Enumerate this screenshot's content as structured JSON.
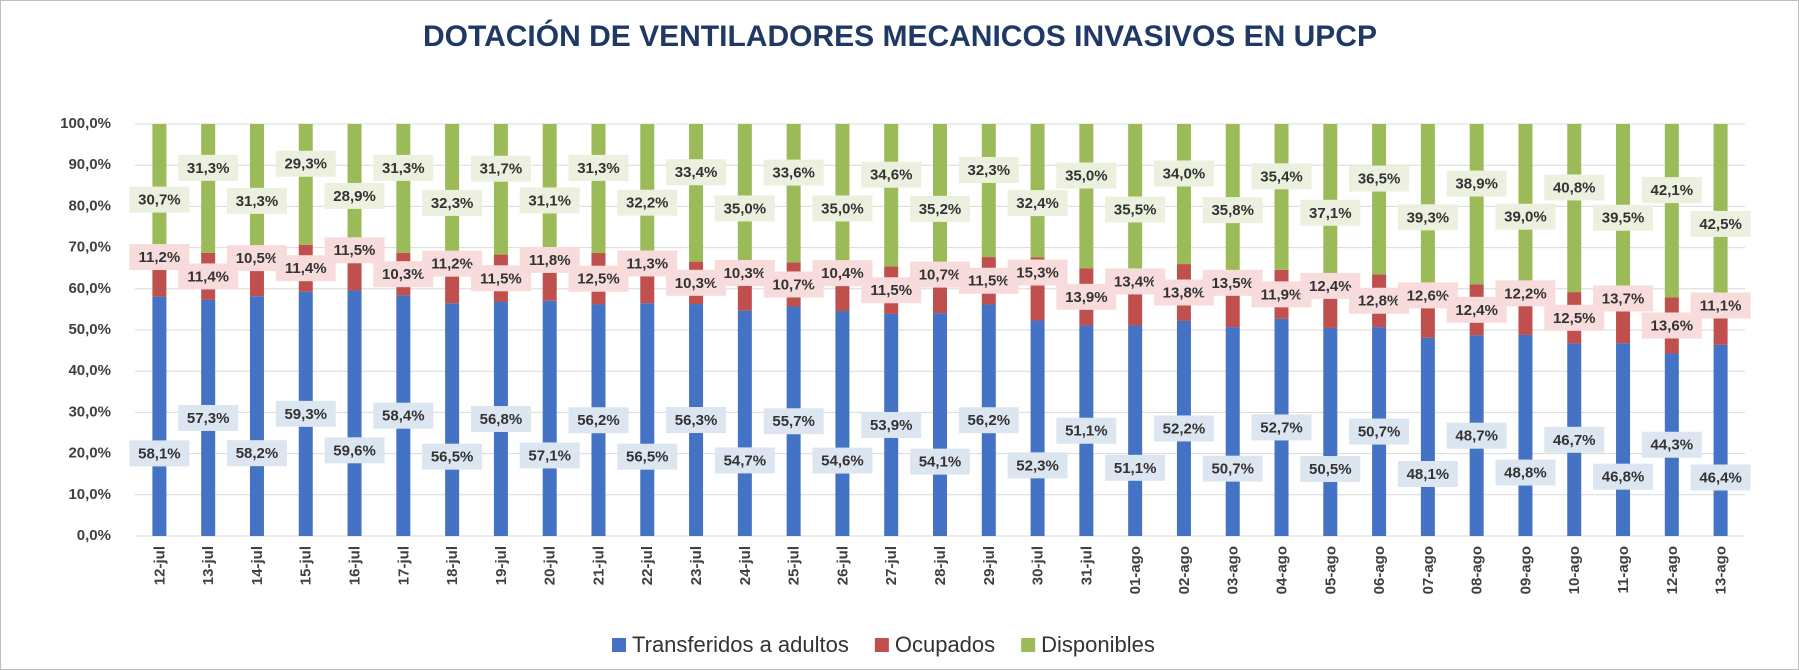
{
  "chart_data": {
    "type": "stacked_bar",
    "title": "DOTACIÓN DE VENTILADORES MECANICOS INVASIVOS EN UPCP",
    "categories": [
      "12-jul",
      "13-jul",
      "14-jul",
      "15-jul",
      "16-jul",
      "17-jul",
      "18-jul",
      "19-jul",
      "20-jul",
      "21-jul",
      "22-jul",
      "23-jul",
      "24-jul",
      "25-jul",
      "26-jul",
      "27-jul",
      "28-jul",
      "29-jul",
      "30-jul",
      "31-jul",
      "01-ago",
      "02-ago",
      "03-ago",
      "04-ago",
      "05-ago",
      "06-ago",
      "07-ago",
      "08-ago",
      "09-ago",
      "10-ago",
      "11-ago",
      "12-ago",
      "13-ago"
    ],
    "series": [
      {
        "name": "Transferidos a adultos",
        "color": "#4472c4",
        "values": [
          58.1,
          57.3,
          58.2,
          59.3,
          59.6,
          58.4,
          56.5,
          56.8,
          57.1,
          56.2,
          56.5,
          56.3,
          54.7,
          55.7,
          54.6,
          53.9,
          54.1,
          56.2,
          52.3,
          51.1,
          51.1,
          52.2,
          50.7,
          52.7,
          50.5,
          50.7,
          48.1,
          48.7,
          48.8,
          46.7,
          46.8,
          44.3,
          46.4
        ],
        "value_labels": [
          "58,1%",
          "57,3%",
          "58,2%",
          "59,3%",
          "59,6%",
          "58,4%",
          "56,5%",
          "56,8%",
          "57,1%",
          "56,2%",
          "56,5%",
          "56,3%",
          "54,7%",
          "55,7%",
          "54,6%",
          "53,9%",
          "54,1%",
          "56,2%",
          "52,3%",
          "51,1%",
          "51,1%",
          "52,2%",
          "50,7%",
          "52,7%",
          "50,5%",
          "50,7%",
          "48,1%",
          "48,7%",
          "48,8%",
          "46,7%",
          "46,8%",
          "44,3%",
          "46,4%"
        ]
      },
      {
        "name": "Ocupados",
        "color": "#c0504d",
        "values": [
          11.2,
          11.4,
          10.5,
          11.4,
          11.5,
          10.3,
          11.2,
          11.5,
          11.8,
          12.5,
          11.3,
          10.3,
          10.3,
          10.7,
          10.4,
          11.5,
          10.7,
          11.5,
          15.3,
          13.9,
          13.4,
          13.8,
          13.5,
          11.9,
          12.4,
          12.8,
          12.6,
          12.4,
          12.2,
          12.5,
          13.7,
          13.6,
          11.1
        ],
        "value_labels": [
          "11,2%",
          "11,4%",
          "10,5%",
          "11,4%",
          "11,5%",
          "10,3%",
          "11,2%",
          "11,5%",
          "11,8%",
          "12,5%",
          "11,3%",
          "10,3%",
          "10,3%",
          "10,7%",
          "10,4%",
          "11,5%",
          "10,7%",
          "11,5%",
          "15,3%",
          "13,9%",
          "13,4%",
          "13,8%",
          "13,5%",
          "11,9%",
          "12,4%",
          "12,8%",
          "12,6%",
          "12,4%",
          "12,2%",
          "12,5%",
          "13,7%",
          "13,6%",
          "11,1%"
        ]
      },
      {
        "name": "Disponibles",
        "color": "#9bbb59",
        "values": [
          30.7,
          31.3,
          31.3,
          29.3,
          28.9,
          31.3,
          32.3,
          31.7,
          31.1,
          31.3,
          32.2,
          33.4,
          35.0,
          33.6,
          35.0,
          34.6,
          35.2,
          32.3,
          32.4,
          35.0,
          35.5,
          34.0,
          35.8,
          35.4,
          37.1,
          36.5,
          39.3,
          38.9,
          39.0,
          40.8,
          39.5,
          42.1,
          42.5
        ],
        "value_labels": [
          "30,7%",
          "31,3%",
          "31,3%",
          "29,3%",
          "28,9%",
          "31,3%",
          "32,3%",
          "31,7%",
          "31,1%",
          "31,3%",
          "32,2%",
          "33,4%",
          "35,0%",
          "33,6%",
          "35,0%",
          "34,6%",
          "35,2%",
          "32,3%",
          "32,4%",
          "35,0%",
          "35,5%",
          "34,0%",
          "35,8%",
          "35,4%",
          "37,1%",
          "36,5%",
          "39,3%",
          "38,9%",
          "39,0%",
          "40,8%",
          "39,5%",
          "42,1%",
          "42,5%"
        ]
      }
    ],
    "ylim": [
      0,
      100
    ],
    "yticks": [
      {
        "value": 0,
        "label": "0,0%"
      },
      {
        "value": 10,
        "label": "10,0%"
      },
      {
        "value": 20,
        "label": "20,0%"
      },
      {
        "value": 30,
        "label": "30,0%"
      },
      {
        "value": 40,
        "label": "40,0%"
      },
      {
        "value": 50,
        "label": "50,0%"
      },
      {
        "value": 60,
        "label": "60,0%"
      },
      {
        "value": 70,
        "label": "70,0%"
      },
      {
        "value": 80,
        "label": "80,0%"
      },
      {
        "value": 90,
        "label": "90,0%"
      },
      {
        "value": 100,
        "label": "100,0%"
      }
    ],
    "grid": true,
    "legend": "bottom"
  }
}
